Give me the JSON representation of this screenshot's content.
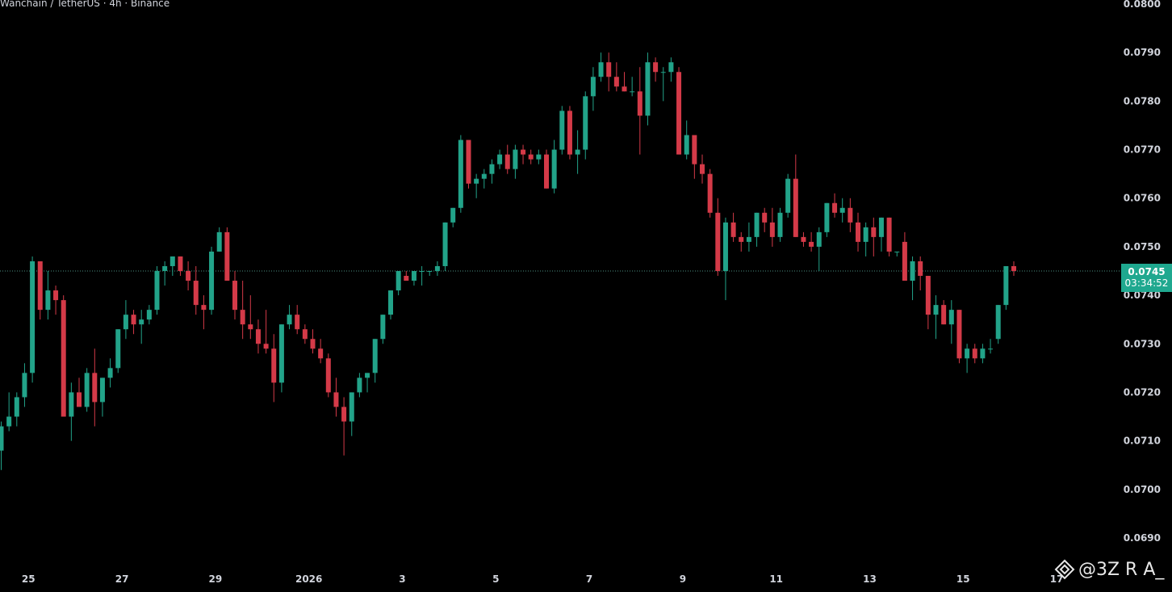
{
  "header": {
    "title": "Wanchain / TetherUS · 4h · Binance"
  },
  "price_label": {
    "price": "0.0745",
    "countdown": "03:34:52",
    "color": "#1fa88f"
  },
  "watermark": {
    "text": "@3Z R A_",
    "icon": "binance-diamond-icon"
  },
  "colors": {
    "up": "#22a389",
    "down": "#d43a48",
    "background": "#000000",
    "last_price_line": "#5fb3a3"
  },
  "chart_data": {
    "type": "candlestick",
    "title": "Wanchain / TetherUS · 4h · Binance",
    "ylim": [
      0.0685,
      0.08
    ],
    "y_ticks": [
      "0.0800",
      "0.0790",
      "0.0780",
      "0.0770",
      "0.0760",
      "0.0750",
      "0.0740",
      "0.0730",
      "0.0720",
      "0.0710",
      "0.0700",
      "0.0690"
    ],
    "x_tick_labels": [
      "25",
      "27",
      "29",
      "2026",
      "3",
      "5",
      "7",
      "9",
      "11",
      "13",
      "15",
      "17"
    ],
    "x_tick_index": [
      3.5,
      15.5,
      27.5,
      39.5,
      51.5,
      63.5,
      75.5,
      87.5,
      99.5,
      111.5,
      123.5,
      135.5
    ],
    "last_price": 0.0745,
    "candles": [
      [
        0.0708,
        0.0714,
        0.0704,
        0.0713
      ],
      [
        0.0713,
        0.072,
        0.0712,
        0.0715
      ],
      [
        0.0715,
        0.072,
        0.0713,
        0.0719
      ],
      [
        0.0719,
        0.0726,
        0.0717,
        0.0724
      ],
      [
        0.0724,
        0.0748,
        0.0722,
        0.0747
      ],
      [
        0.0747,
        0.0746,
        0.0735,
        0.0737
      ],
      [
        0.0737,
        0.0745,
        0.0735,
        0.0741
      ],
      [
        0.0741,
        0.0742,
        0.0736,
        0.0739
      ],
      [
        0.0739,
        0.074,
        0.0715,
        0.0715
      ],
      [
        0.0715,
        0.0722,
        0.071,
        0.072
      ],
      [
        0.072,
        0.0723,
        0.0717,
        0.0717
      ],
      [
        0.0717,
        0.0725,
        0.0716,
        0.0724
      ],
      [
        0.0724,
        0.0729,
        0.0713,
        0.0718
      ],
      [
        0.0718,
        0.0723,
        0.0715,
        0.0723
      ],
      [
        0.0723,
        0.0727,
        0.0721,
        0.0725
      ],
      [
        0.0725,
        0.0733,
        0.0724,
        0.0733
      ],
      [
        0.0733,
        0.0739,
        0.0731,
        0.0736
      ],
      [
        0.0736,
        0.0737,
        0.0732,
        0.0734
      ],
      [
        0.0734,
        0.0737,
        0.073,
        0.0735
      ],
      [
        0.0735,
        0.0738,
        0.0734,
        0.0737
      ],
      [
        0.0737,
        0.0746,
        0.0736,
        0.0745
      ],
      [
        0.0745,
        0.0747,
        0.0742,
        0.0746
      ],
      [
        0.0746,
        0.0748,
        0.0744,
        0.0748
      ],
      [
        0.0748,
        0.0748,
        0.0744,
        0.0745
      ],
      [
        0.0745,
        0.0747,
        0.0741,
        0.0743
      ],
      [
        0.0743,
        0.0746,
        0.0736,
        0.0738
      ],
      [
        0.0738,
        0.074,
        0.0733,
        0.0737
      ],
      [
        0.0737,
        0.075,
        0.0736,
        0.0749
      ],
      [
        0.0749,
        0.0754,
        0.0749,
        0.0753
      ],
      [
        0.0753,
        0.0754,
        0.0743,
        0.0743
      ],
      [
        0.0743,
        0.0745,
        0.0735,
        0.0737
      ],
      [
        0.0737,
        0.0743,
        0.0731,
        0.0734
      ],
      [
        0.0734,
        0.074,
        0.0731,
        0.0733
      ],
      [
        0.0733,
        0.0735,
        0.0728,
        0.073
      ],
      [
        0.073,
        0.0737,
        0.0728,
        0.0729
      ],
      [
        0.0729,
        0.0732,
        0.0718,
        0.0722
      ],
      [
        0.0722,
        0.0734,
        0.072,
        0.0734
      ],
      [
        0.0734,
        0.0738,
        0.0733,
        0.0736
      ],
      [
        0.0736,
        0.0738,
        0.0732,
        0.0733
      ],
      [
        0.0733,
        0.0734,
        0.073,
        0.0731
      ],
      [
        0.0731,
        0.0733,
        0.0728,
        0.0729
      ],
      [
        0.0729,
        0.0731,
        0.0726,
        0.0727
      ],
      [
        0.0727,
        0.0728,
        0.0719,
        0.072
      ],
      [
        0.072,
        0.0723,
        0.0715,
        0.0717
      ],
      [
        0.0717,
        0.0719,
        0.0707,
        0.0714
      ],
      [
        0.0714,
        0.072,
        0.0711,
        0.072
      ],
      [
        0.072,
        0.0724,
        0.0719,
        0.0723
      ],
      [
        0.0723,
        0.0724,
        0.072,
        0.0724
      ],
      [
        0.0724,
        0.0731,
        0.0722,
        0.0731
      ],
      [
        0.0731,
        0.0736,
        0.073,
        0.0736
      ],
      [
        0.0736,
        0.0741,
        0.0735,
        0.0741
      ],
      [
        0.0741,
        0.0745,
        0.074,
        0.0745
      ],
      [
        0.0744,
        0.0745,
        0.0743,
        0.0743
      ],
      [
        0.0743,
        0.0745,
        0.0742,
        0.0745
      ],
      [
        0.0745,
        0.0746,
        0.0742,
        0.0745
      ],
      [
        0.0745,
        0.0745,
        0.0744,
        0.0745
      ],
      [
        0.0745,
        0.0747,
        0.0744,
        0.0746
      ],
      [
        0.0746,
        0.0755,
        0.0745,
        0.0755
      ],
      [
        0.0755,
        0.0758,
        0.0754,
        0.0758
      ],
      [
        0.0758,
        0.0773,
        0.0757,
        0.0772
      ],
      [
        0.0772,
        0.0772,
        0.0762,
        0.0763
      ],
      [
        0.0763,
        0.0765,
        0.076,
        0.0764
      ],
      [
        0.0764,
        0.0766,
        0.0762,
        0.0765
      ],
      [
        0.0765,
        0.0768,
        0.0763,
        0.0767
      ],
      [
        0.0767,
        0.077,
        0.0766,
        0.0769
      ],
      [
        0.0769,
        0.0771,
        0.0765,
        0.0766
      ],
      [
        0.0766,
        0.0771,
        0.0764,
        0.077
      ],
      [
        0.077,
        0.0771,
        0.0767,
        0.0769
      ],
      [
        0.0769,
        0.077,
        0.0767,
        0.0768
      ],
      [
        0.0768,
        0.077,
        0.0767,
        0.0769
      ],
      [
        0.0769,
        0.077,
        0.0762,
        0.0762
      ],
      [
        0.0762,
        0.0772,
        0.0761,
        0.077
      ],
      [
        0.077,
        0.0779,
        0.0769,
        0.0778
      ],
      [
        0.0778,
        0.0779,
        0.0768,
        0.0769
      ],
      [
        0.0769,
        0.0774,
        0.0765,
        0.077
      ],
      [
        0.077,
        0.0782,
        0.0768,
        0.0781
      ],
      [
        0.0781,
        0.0787,
        0.0778,
        0.0785
      ],
      [
        0.0785,
        0.079,
        0.0784,
        0.0788
      ],
      [
        0.0788,
        0.079,
        0.0782,
        0.0785
      ],
      [
        0.0785,
        0.0788,
        0.0782,
        0.0783
      ],
      [
        0.0783,
        0.0786,
        0.0782,
        0.0782
      ],
      [
        0.0782,
        0.0785,
        0.0781,
        0.0782
      ],
      [
        0.0782,
        0.0787,
        0.0769,
        0.0777
      ],
      [
        0.0777,
        0.079,
        0.0775,
        0.0788
      ],
      [
        0.0788,
        0.0789,
        0.0784,
        0.0786
      ],
      [
        0.0786,
        0.0787,
        0.078,
        0.0786
      ],
      [
        0.0786,
        0.0789,
        0.0784,
        0.0788
      ],
      [
        0.0786,
        0.0787,
        0.0769,
        0.0769
      ],
      [
        0.0769,
        0.0776,
        0.0768,
        0.0773
      ],
      [
        0.0773,
        0.0773,
        0.0764,
        0.0767
      ],
      [
        0.0767,
        0.0769,
        0.0763,
        0.0765
      ],
      [
        0.0765,
        0.0766,
        0.0756,
        0.0757
      ],
      [
        0.0757,
        0.076,
        0.0744,
        0.0745
      ],
      [
        0.0745,
        0.0756,
        0.0739,
        0.0755
      ],
      [
        0.0755,
        0.0757,
        0.0751,
        0.0752
      ],
      [
        0.0752,
        0.0753,
        0.0749,
        0.0751
      ],
      [
        0.0751,
        0.0755,
        0.0749,
        0.0752
      ],
      [
        0.0752,
        0.0757,
        0.075,
        0.0757
      ],
      [
        0.0757,
        0.0758,
        0.0753,
        0.0755
      ],
      [
        0.0755,
        0.0758,
        0.075,
        0.0752
      ],
      [
        0.0752,
        0.0758,
        0.0751,
        0.0757
      ],
      [
        0.0757,
        0.0765,
        0.0756,
        0.0764
      ],
      [
        0.0764,
        0.0769,
        0.0752,
        0.0752
      ],
      [
        0.0752,
        0.0753,
        0.075,
        0.0751
      ],
      [
        0.0751,
        0.0753,
        0.0749,
        0.075
      ],
      [
        0.075,
        0.0754,
        0.0745,
        0.0753
      ],
      [
        0.0753,
        0.0759,
        0.0752,
        0.0759
      ],
      [
        0.0759,
        0.0761,
        0.0756,
        0.0757
      ],
      [
        0.0757,
        0.076,
        0.0755,
        0.0758
      ],
      [
        0.0758,
        0.076,
        0.0753,
        0.0755
      ],
      [
        0.0755,
        0.0757,
        0.0749,
        0.0751
      ],
      [
        0.0751,
        0.0755,
        0.0748,
        0.0754
      ],
      [
        0.0754,
        0.0756,
        0.0748,
        0.0752
      ],
      [
        0.0752,
        0.0756,
        0.0749,
        0.0756
      ],
      [
        0.0756,
        0.0756,
        0.0748,
        0.0749
      ],
      [
        0.0749,
        0.0749,
        0.0748,
        0.0749
      ],
      [
        0.0751,
        0.0753,
        0.0743,
        0.0743
      ],
      [
        0.0743,
        0.0748,
        0.0739,
        0.0747
      ],
      [
        0.0747,
        0.0748,
        0.0741,
        0.0744
      ],
      [
        0.0744,
        0.0744,
        0.0733,
        0.0736
      ],
      [
        0.0736,
        0.074,
        0.0731,
        0.0738
      ],
      [
        0.0738,
        0.0739,
        0.0734,
        0.0734
      ],
      [
        0.0734,
        0.0739,
        0.073,
        0.0737
      ],
      [
        0.0737,
        0.0737,
        0.0726,
        0.0727
      ],
      [
        0.0727,
        0.073,
        0.0724,
        0.0729
      ],
      [
        0.0729,
        0.073,
        0.0726,
        0.0727
      ],
      [
        0.0727,
        0.073,
        0.0726,
        0.0729
      ],
      [
        0.0729,
        0.0731,
        0.0728,
        0.0729
      ],
      [
        0.0731,
        0.0738,
        0.073,
        0.0738
      ],
      [
        0.0738,
        0.0746,
        0.0737,
        0.0746
      ],
      [
        0.0746,
        0.0747,
        0.0744,
        0.0745
      ]
    ]
  }
}
